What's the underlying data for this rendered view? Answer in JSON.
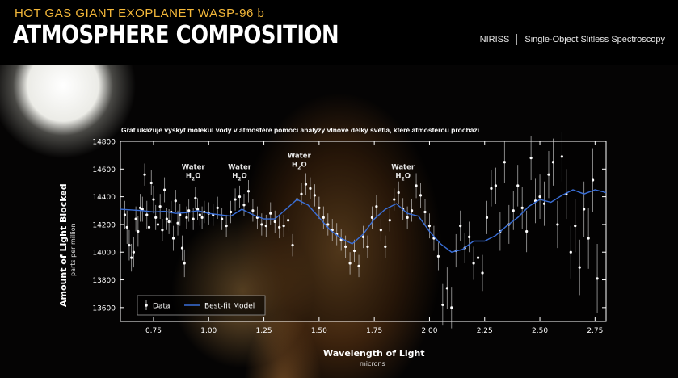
{
  "header": {
    "supertitle": "HOT GAS GIANT EXOPLANET WASP-96 b",
    "title": "ATMOSPHERE COMPOSITION",
    "instrument": "NIRISS",
    "mode": "Single-Object Slitless Spectroscopy"
  },
  "colors": {
    "accent": "#f4b83a",
    "model": "#3a6fd8",
    "data": "#ffffff"
  },
  "chart_data": {
    "type": "scatter",
    "title": "Graf ukazuje výskyt molekul vody v atmosféře pomocí analýzy vlnové délky světla, které atmosférou prochází",
    "xlabel": "Wavelength of Light",
    "xunit": "microns",
    "ylabel": "Amount of Light Blocked",
    "yunit": "parts per million",
    "xlim": [
      0.6,
      2.8
    ],
    "ylim": [
      13500,
      14800
    ],
    "xticks": [
      0.75,
      1.0,
      1.25,
      1.5,
      1.75,
      2.0,
      2.25,
      2.5,
      2.75
    ],
    "xtick_labels": [
      "0.75",
      "1.00",
      "1.25",
      "1.50",
      "1.75",
      "2.00",
      "2.25",
      "2.50",
      "2.75"
    ],
    "yticks": [
      13600,
      13800,
      14000,
      14200,
      14400,
      14600,
      14800
    ],
    "ytick_labels": [
      "13600",
      "13800",
      "14000",
      "14200",
      "14400",
      "14600",
      "14800"
    ],
    "legend": {
      "position": "bottom-left",
      "entries": [
        "Data",
        "Best-fit Model"
      ]
    },
    "annotations": [
      {
        "label": "Water",
        "formula": "H",
        "sub": "2",
        "tail": "O",
        "x": 0.93,
        "y": 14600
      },
      {
        "label": "Water",
        "formula": "H",
        "sub": "2",
        "tail": "O",
        "x": 1.14,
        "y": 14600
      },
      {
        "label": "Water",
        "formula": "H",
        "sub": "2",
        "tail": "O",
        "x": 1.41,
        "y": 14680
      },
      {
        "label": "Water",
        "formula": "H",
        "sub": "2",
        "tail": "O",
        "x": 1.88,
        "y": 14600
      }
    ],
    "series": [
      {
        "name": "Best-fit Model",
        "x": [
          0.6,
          0.65,
          0.7,
          0.75,
          0.8,
          0.85,
          0.9,
          0.95,
          1.0,
          1.05,
          1.1,
          1.15,
          1.2,
          1.25,
          1.3,
          1.35,
          1.4,
          1.45,
          1.5,
          1.55,
          1.6,
          1.65,
          1.7,
          1.75,
          1.8,
          1.85,
          1.9,
          1.95,
          2.0,
          2.05,
          2.1,
          2.15,
          2.2,
          2.25,
          2.3,
          2.35,
          2.4,
          2.45,
          2.5,
          2.55,
          2.6,
          2.65,
          2.7,
          2.75,
          2.8
        ],
        "y": [
          14310,
          14305,
          14300,
          14290,
          14295,
          14280,
          14285,
          14300,
          14280,
          14270,
          14260,
          14310,
          14270,
          14240,
          14240,
          14310,
          14380,
          14340,
          14250,
          14160,
          14100,
          14060,
          14130,
          14240,
          14310,
          14350,
          14280,
          14260,
          14150,
          14060,
          14000,
          14020,
          14080,
          14080,
          14120,
          14190,
          14250,
          14330,
          14380,
          14360,
          14410,
          14450,
          14420,
          14450,
          14430
        ]
      },
      {
        "name": "Data",
        "points": [
          {
            "x": 0.62,
            "y": 14270,
            "e": 100
          },
          {
            "x": 0.63,
            "y": 14180,
            "e": 120
          },
          {
            "x": 0.64,
            "y": 14050,
            "e": 110
          },
          {
            "x": 0.65,
            "y": 13960,
            "e": 100
          },
          {
            "x": 0.66,
            "y": 14000,
            "e": 110
          },
          {
            "x": 0.67,
            "y": 14240,
            "e": 90
          },
          {
            "x": 0.68,
            "y": 14150,
            "e": 110
          },
          {
            "x": 0.69,
            "y": 14320,
            "e": 100
          },
          {
            "x": 0.7,
            "y": 14310,
            "e": 90
          },
          {
            "x": 0.71,
            "y": 14560,
            "e": 80
          },
          {
            "x": 0.72,
            "y": 14270,
            "e": 100
          },
          {
            "x": 0.73,
            "y": 14180,
            "e": 90
          },
          {
            "x": 0.74,
            "y": 14500,
            "e": 90
          },
          {
            "x": 0.75,
            "y": 14380,
            "e": 100
          },
          {
            "x": 0.76,
            "y": 14250,
            "e": 90
          },
          {
            "x": 0.77,
            "y": 14200,
            "e": 80
          },
          {
            "x": 0.78,
            "y": 14330,
            "e": 90
          },
          {
            "x": 0.79,
            "y": 14160,
            "e": 80
          },
          {
            "x": 0.8,
            "y": 14450,
            "e": 90
          },
          {
            "x": 0.81,
            "y": 14240,
            "e": 80
          },
          {
            "x": 0.82,
            "y": 14220,
            "e": 90
          },
          {
            "x": 0.83,
            "y": 14290,
            "e": 80
          },
          {
            "x": 0.84,
            "y": 14100,
            "e": 90
          },
          {
            "x": 0.85,
            "y": 14370,
            "e": 80
          },
          {
            "x": 0.86,
            "y": 14210,
            "e": 90
          },
          {
            "x": 0.87,
            "y": 14270,
            "e": 80
          },
          {
            "x": 0.88,
            "y": 14030,
            "e": 90
          },
          {
            "x": 0.89,
            "y": 13920,
            "e": 100
          },
          {
            "x": 0.9,
            "y": 14250,
            "e": 80
          },
          {
            "x": 0.91,
            "y": 14300,
            "e": 80
          },
          {
            "x": 0.93,
            "y": 14240,
            "e": 80
          },
          {
            "x": 0.94,
            "y": 14390,
            "e": 80
          },
          {
            "x": 0.95,
            "y": 14310,
            "e": 80
          },
          {
            "x": 0.96,
            "y": 14270,
            "e": 80
          },
          {
            "x": 0.97,
            "y": 14250,
            "e": 80
          },
          {
            "x": 0.98,
            "y": 14290,
            "e": 80
          },
          {
            "x": 1.0,
            "y": 14280,
            "e": 80
          },
          {
            "x": 1.02,
            "y": 14270,
            "e": 80
          },
          {
            "x": 1.04,
            "y": 14320,
            "e": 80
          },
          {
            "x": 1.06,
            "y": 14240,
            "e": 80
          },
          {
            "x": 1.08,
            "y": 14190,
            "e": 80
          },
          {
            "x": 1.1,
            "y": 14290,
            "e": 80
          },
          {
            "x": 1.12,
            "y": 14380,
            "e": 80
          },
          {
            "x": 1.14,
            "y": 14400,
            "e": 80
          },
          {
            "x": 1.16,
            "y": 14340,
            "e": 80
          },
          {
            "x": 1.18,
            "y": 14440,
            "e": 80
          },
          {
            "x": 1.2,
            "y": 14300,
            "e": 80
          },
          {
            "x": 1.22,
            "y": 14250,
            "e": 80
          },
          {
            "x": 1.24,
            "y": 14200,
            "e": 80
          },
          {
            "x": 1.26,
            "y": 14190,
            "e": 80
          },
          {
            "x": 1.28,
            "y": 14280,
            "e": 80
          },
          {
            "x": 1.3,
            "y": 14220,
            "e": 80
          },
          {
            "x": 1.32,
            "y": 14180,
            "e": 80
          },
          {
            "x": 1.34,
            "y": 14190,
            "e": 80
          },
          {
            "x": 1.36,
            "y": 14230,
            "e": 80
          },
          {
            "x": 1.38,
            "y": 14050,
            "e": 80
          },
          {
            "x": 1.4,
            "y": 14380,
            "e": 80
          },
          {
            "x": 1.42,
            "y": 14420,
            "e": 80
          },
          {
            "x": 1.44,
            "y": 14490,
            "e": 80
          },
          {
            "x": 1.46,
            "y": 14460,
            "e": 80
          },
          {
            "x": 1.48,
            "y": 14410,
            "e": 80
          },
          {
            "x": 1.5,
            "y": 14320,
            "e": 80
          },
          {
            "x": 1.52,
            "y": 14250,
            "e": 80
          },
          {
            "x": 1.54,
            "y": 14200,
            "e": 80
          },
          {
            "x": 1.56,
            "y": 14160,
            "e": 80
          },
          {
            "x": 1.58,
            "y": 14130,
            "e": 80
          },
          {
            "x": 1.6,
            "y": 14090,
            "e": 80
          },
          {
            "x": 1.62,
            "y": 14040,
            "e": 80
          },
          {
            "x": 1.64,
            "y": 13920,
            "e": 80
          },
          {
            "x": 1.66,
            "y": 14010,
            "e": 80
          },
          {
            "x": 1.68,
            "y": 13900,
            "e": 80
          },
          {
            "x": 1.7,
            "y": 14110,
            "e": 80
          },
          {
            "x": 1.72,
            "y": 14040,
            "e": 80
          },
          {
            "x": 1.74,
            "y": 14250,
            "e": 80
          },
          {
            "x": 1.76,
            "y": 14330,
            "e": 80
          },
          {
            "x": 1.78,
            "y": 14160,
            "e": 80
          },
          {
            "x": 1.8,
            "y": 14040,
            "e": 80
          },
          {
            "x": 1.82,
            "y": 14230,
            "e": 80
          },
          {
            "x": 1.84,
            "y": 14380,
            "e": 80
          },
          {
            "x": 1.86,
            "y": 14430,
            "e": 80
          },
          {
            "x": 1.88,
            "y": 14310,
            "e": 80
          },
          {
            "x": 1.9,
            "y": 14250,
            "e": 80
          },
          {
            "x": 1.92,
            "y": 14300,
            "e": 80
          },
          {
            "x": 1.94,
            "y": 14480,
            "e": 90
          },
          {
            "x": 1.96,
            "y": 14410,
            "e": 90
          },
          {
            "x": 1.98,
            "y": 14290,
            "e": 90
          },
          {
            "x": 2.0,
            "y": 14190,
            "e": 90
          },
          {
            "x": 2.02,
            "y": 14100,
            "e": 90
          },
          {
            "x": 2.04,
            "y": 13970,
            "e": 100
          },
          {
            "x": 2.06,
            "y": 13620,
            "e": 150
          },
          {
            "x": 2.08,
            "y": 13740,
            "e": 150
          },
          {
            "x": 2.1,
            "y": 13600,
            "e": 150
          },
          {
            "x": 2.12,
            "y": 14010,
            "e": 120
          },
          {
            "x": 2.14,
            "y": 14190,
            "e": 110
          },
          {
            "x": 2.16,
            "y": 14030,
            "e": 110
          },
          {
            "x": 2.18,
            "y": 14110,
            "e": 110
          },
          {
            "x": 2.2,
            "y": 13920,
            "e": 120
          },
          {
            "x": 2.22,
            "y": 13960,
            "e": 120
          },
          {
            "x": 2.24,
            "y": 13850,
            "e": 130
          },
          {
            "x": 2.26,
            "y": 14250,
            "e": 120
          },
          {
            "x": 2.28,
            "y": 14460,
            "e": 130
          },
          {
            "x": 2.3,
            "y": 14480,
            "e": 130
          },
          {
            "x": 2.32,
            "y": 14150,
            "e": 140
          },
          {
            "x": 2.34,
            "y": 14650,
            "e": 150
          },
          {
            "x": 2.36,
            "y": 14200,
            "e": 140
          },
          {
            "x": 2.38,
            "y": 14300,
            "e": 140
          },
          {
            "x": 2.4,
            "y": 14480,
            "e": 150
          },
          {
            "x": 2.42,
            "y": 14320,
            "e": 150
          },
          {
            "x": 2.44,
            "y": 14150,
            "e": 150
          },
          {
            "x": 2.46,
            "y": 14680,
            "e": 160
          },
          {
            "x": 2.48,
            "y": 14370,
            "e": 160
          },
          {
            "x": 2.5,
            "y": 14400,
            "e": 160
          },
          {
            "x": 2.52,
            "y": 14350,
            "e": 160
          },
          {
            "x": 2.54,
            "y": 14560,
            "e": 170
          },
          {
            "x": 2.56,
            "y": 14650,
            "e": 170
          },
          {
            "x": 2.58,
            "y": 14200,
            "e": 170
          },
          {
            "x": 2.6,
            "y": 14690,
            "e": 180
          },
          {
            "x": 2.62,
            "y": 14420,
            "e": 180
          },
          {
            "x": 2.64,
            "y": 14000,
            "e": 190
          },
          {
            "x": 2.66,
            "y": 14190,
            "e": 190
          },
          {
            "x": 2.68,
            "y": 13890,
            "e": 200
          },
          {
            "x": 2.7,
            "y": 14310,
            "e": 200
          },
          {
            "x": 2.72,
            "y": 14100,
            "e": 220
          },
          {
            "x": 2.74,
            "y": 14520,
            "e": 230
          },
          {
            "x": 2.76,
            "y": 13810,
            "e": 250
          }
        ]
      }
    ]
  }
}
